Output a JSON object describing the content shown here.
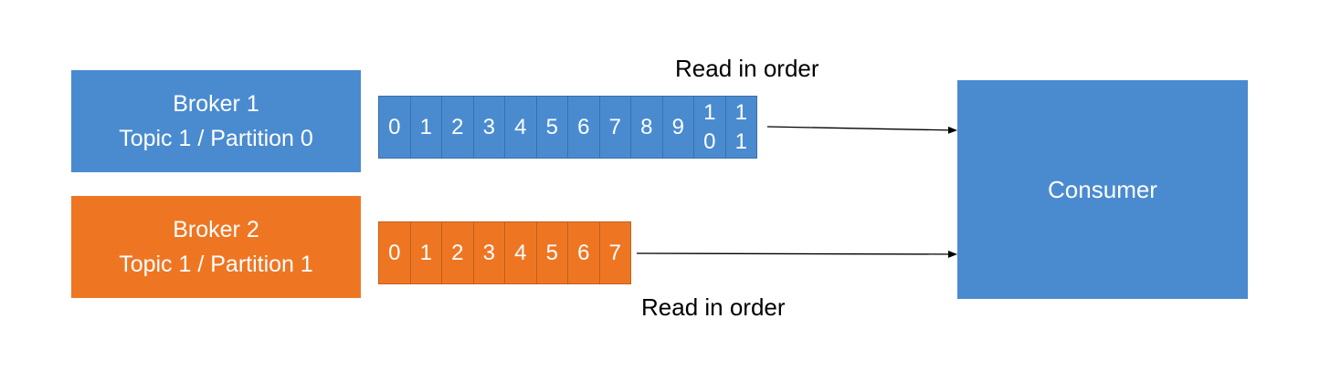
{
  "colors": {
    "blue": "#4a8bd0",
    "blue_border": "#3a6fa8",
    "orange": "#ee7623",
    "orange_border": "#c05f1a"
  },
  "brokers": [
    {
      "line1": "Broker 1",
      "line2": "Topic 1 / Partition 0",
      "color": "blue"
    },
    {
      "line1": "Broker 2",
      "line2": "Topic 1 / Partition 1",
      "color": "orange"
    }
  ],
  "partitions": [
    {
      "offsets": [
        "0",
        "1",
        "2",
        "3",
        "4",
        "5",
        "6",
        "7",
        "8",
        "9",
        "10",
        "11"
      ]
    },
    {
      "offsets": [
        "0",
        "1",
        "2",
        "3",
        "4",
        "5",
        "6",
        "7"
      ]
    }
  ],
  "labels": {
    "top": "Read in order",
    "bottom": "Read in order"
  },
  "consumer": {
    "label": "Consumer"
  }
}
